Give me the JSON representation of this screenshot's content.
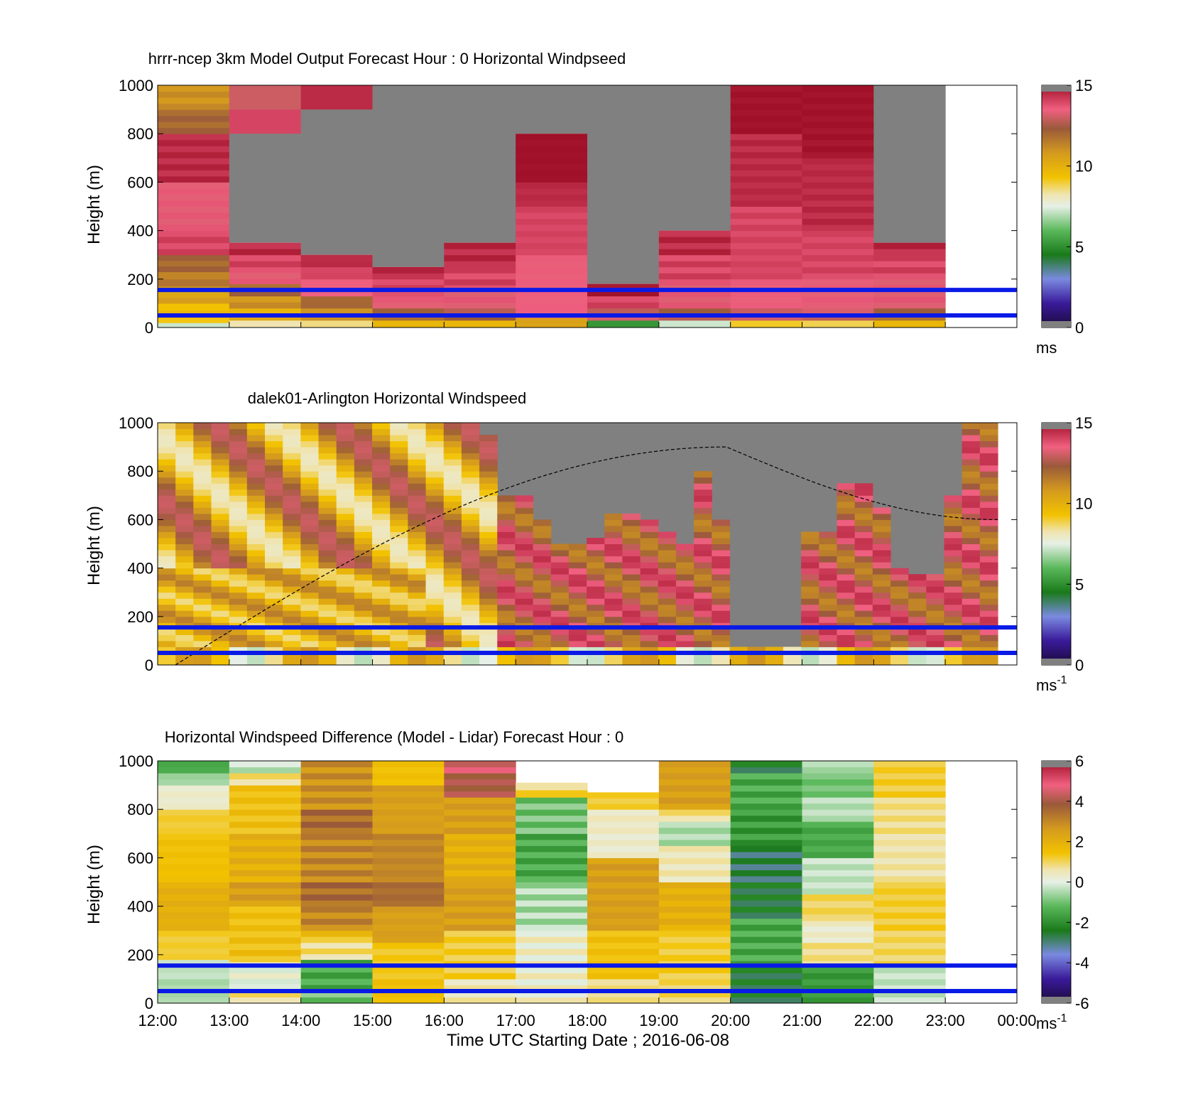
{
  "chart_data": [
    {
      "type": "heatmap",
      "title": "hrrr-ncep 3km Model Output   Forecast Hour : 0 Horizontal Windpseed",
      "ylabel": "Height (m)",
      "ylim": [
        0,
        1000
      ],
      "yticks": [
        "0",
        "200",
        "400",
        "600",
        "800",
        "1000"
      ],
      "colorbar": {
        "min": 0,
        "max": 15,
        "ticks": [
          "0",
          "5",
          "10",
          "15"
        ],
        "unit": "ms",
        "unit_exp": "",
        "palette": "speed"
      },
      "hlines": [
        50,
        155
      ],
      "columns": [
        {
          "top": 1000,
          "segments": [
            [
              0,
              20,
              7
            ],
            [
              20,
              40,
              9
            ],
            [
              40,
              100,
              9.5
            ],
            [
              100,
              170,
              10.5
            ],
            [
              170,
              230,
              11.5
            ],
            [
              230,
              300,
              12
            ],
            [
              300,
              400,
              14
            ],
            [
              400,
              600,
              13.5
            ],
            [
              600,
              800,
              14.5
            ],
            [
              800,
              900,
              12
            ],
            [
              900,
              1000,
              11
            ]
          ]
        },
        {
          "top": 350,
          "segments": [
            [
              0,
              30,
              8
            ],
            [
              30,
              80,
              10
            ],
            [
              80,
              130,
              11
            ],
            [
              130,
              180,
              12
            ],
            [
              180,
              250,
              13.5
            ],
            [
              250,
              300,
              14
            ],
            [
              300,
              350,
              14.5
            ]
          ],
          "above": [
            {
              "from": 900,
              "to": 1000,
              "v": 13
            },
            {
              "from": 800,
              "to": 900,
              "v": 14
            }
          ]
        },
        {
          "top": 300,
          "segments": [
            [
              0,
              30,
              8.5
            ],
            [
              30,
              80,
              11
            ],
            [
              80,
              130,
              12
            ],
            [
              130,
              200,
              13.5
            ],
            [
              200,
              250,
              14
            ],
            [
              250,
              300,
              14.5
            ]
          ],
          "above": [
            {
              "from": 900,
              "to": 1000,
              "v": 14.5
            }
          ]
        },
        {
          "top": 250,
          "segments": [
            [
              0,
              30,
              10
            ],
            [
              30,
              80,
              12
            ],
            [
              80,
              130,
              13.5
            ],
            [
              130,
              200,
              14
            ],
            [
              200,
              250,
              14.5
            ]
          ]
        },
        {
          "top": 350,
          "segments": [
            [
              0,
              30,
              10
            ],
            [
              30,
              80,
              12.5
            ],
            [
              80,
              150,
              13.5
            ],
            [
              150,
              250,
              14
            ],
            [
              250,
              350,
              14.5
            ]
          ]
        },
        {
          "top": 800,
          "segments": [
            [
              0,
              40,
              10.5
            ],
            [
              40,
              100,
              13.5
            ],
            [
              100,
              300,
              13.5
            ],
            [
              300,
              500,
              14
            ],
            [
              500,
              600,
              14.5
            ],
            [
              600,
              700,
              15
            ],
            [
              700,
              800,
              15
            ]
          ]
        },
        {
          "top": 180,
          "segments": [
            [
              0,
              30,
              5
            ],
            [
              30,
              80,
              13
            ],
            [
              80,
              130,
              14
            ],
            [
              130,
              180,
              15
            ]
          ]
        },
        {
          "top": 400,
          "segments": [
            [
              0,
              30,
              7
            ],
            [
              30,
              80,
              12.5
            ],
            [
              80,
              200,
              13.5
            ],
            [
              200,
              300,
              14
            ],
            [
              300,
              400,
              14.5
            ]
          ]
        },
        {
          "top": 1000,
          "segments": [
            [
              0,
              30,
              9
            ],
            [
              30,
              80,
              13
            ],
            [
              80,
              200,
              13.5
            ],
            [
              200,
              500,
              14
            ],
            [
              500,
              800,
              14.5
            ],
            [
              800,
              1000,
              15
            ]
          ]
        },
        {
          "top": 1000,
          "segments": [
            [
              0,
              30,
              9
            ],
            [
              30,
              80,
              13
            ],
            [
              80,
              200,
              13.5
            ],
            [
              200,
              400,
              14
            ],
            [
              400,
              700,
              14.5
            ],
            [
              700,
              1000,
              15
            ]
          ]
        },
        {
          "top": 350,
          "segments": [
            [
              0,
              30,
              10
            ],
            [
              30,
              80,
              12
            ],
            [
              80,
              200,
              13.5
            ],
            [
              200,
              300,
              14
            ],
            [
              300,
              350,
              14.5
            ]
          ]
        },
        {
          "top": 0,
          "segments": []
        }
      ]
    },
    {
      "type": "heatmap",
      "title": "dalek01-Arlington  Horizontal Windspeed",
      "ylabel": "Height (m)",
      "ylim": [
        0,
        1000
      ],
      "yticks": [
        "0",
        "200",
        "400",
        "600",
        "800",
        "1000"
      ],
      "colorbar": {
        "min": 0,
        "max": 15,
        "ticks": [
          "0",
          "5",
          "10",
          "15"
        ],
        "unit": "ms",
        "unit_exp": "-1",
        "palette": "speed"
      },
      "hlines": [
        50,
        155
      ],
      "sun_curve": {
        "start": 0,
        "peak_x": 0.67,
        "peak_h": 900,
        "end_h": 600
      },
      "profile": {
        "n_columns": 47,
        "tops": [
          1000,
          1000,
          1000,
          1000,
          1000,
          1000,
          1000,
          1000,
          1000,
          1000,
          1000,
          1000,
          1000,
          1000,
          1000,
          1000,
          1000,
          1000,
          1000,
          1000,
          1000,
          1000,
          1000,
          1000,
          1000,
          1000,
          1000,
          1000,
          1000,
          1000,
          1000,
          1000,
          1000,
          1000,
          1000,
          1000,
          1000,
          1000,
          1000,
          1000,
          1000,
          1000,
          1000,
          1000,
          1000,
          1000,
          1000
        ],
        "valid_top": [
          1000,
          1000,
          1000,
          1000,
          1000,
          1000,
          1000,
          1000,
          1000,
          1000,
          1000,
          1000,
          1000,
          1000,
          1000,
          1000,
          1000,
          1000,
          950,
          700,
          700,
          600,
          520,
          520,
          540,
          640,
          640,
          600,
          560,
          500,
          800,
          600,
          80,
          80,
          80,
          80,
          560,
          560,
          750,
          760,
          650,
          420,
          380,
          380,
          700,
          1000,
          1000
        ]
      }
    },
    {
      "type": "heatmap",
      "title": "Horizontal Windspeed Difference (Model - Lidar) Forecast Hour : 0",
      "ylabel": "Height (m)",
      "xlabel": "Time UTC  Starting Date ; 2016-06-08",
      "ylim": [
        0,
        1000
      ],
      "yticks": [
        "0",
        "200",
        "400",
        "600",
        "800",
        "1000"
      ],
      "xticks": [
        "12:00",
        "13:00",
        "14:00",
        "15:00",
        "16:00",
        "17:00",
        "18:00",
        "19:00",
        "20:00",
        "21:00",
        "22:00",
        "23:00",
        "00:00"
      ],
      "colorbar": {
        "min": -6,
        "max": 6,
        "ticks": [
          "-6",
          "-4",
          "-2",
          "0",
          "2",
          "4",
          "6"
        ],
        "unit": "ms",
        "unit_exp": "-1",
        "palette": "diff"
      },
      "hlines": [
        50,
        155
      ],
      "columns": [
        {
          "top": 1000,
          "segments": [
            [
              0,
              100,
              -0.5
            ],
            [
              100,
              180,
              -0.3
            ],
            [
              180,
              300,
              1.2
            ],
            [
              300,
              500,
              2
            ],
            [
              500,
              700,
              1.5
            ],
            [
              700,
              800,
              1.2
            ],
            [
              800,
              900,
              0.3
            ],
            [
              900,
              950,
              -0.6
            ],
            [
              950,
              1000,
              -1.5
            ]
          ]
        },
        {
          "top": 1000,
          "segments": [
            [
              0,
              50,
              0.8
            ],
            [
              50,
              80,
              0.2
            ],
            [
              80,
              170,
              0.1
            ],
            [
              170,
              400,
              1.5
            ],
            [
              400,
              500,
              2.5
            ],
            [
              500,
              700,
              2
            ],
            [
              700,
              900,
              1.5
            ],
            [
              900,
              950,
              0.8
            ],
            [
              950,
              1000,
              -0.3
            ]
          ]
        },
        {
          "top": 1000,
          "segments": [
            [
              0,
              50,
              -1
            ],
            [
              50,
              180,
              -1.5
            ],
            [
              180,
              250,
              0.8
            ],
            [
              250,
              300,
              1.5
            ],
            [
              300,
              400,
              3
            ],
            [
              400,
              500,
              3.5
            ],
            [
              500,
              700,
              3
            ],
            [
              700,
              800,
              3.5
            ],
            [
              800,
              1000,
              2.8
            ]
          ]
        },
        {
          "top": 1000,
          "segments": [
            [
              0,
              100,
              1.5
            ],
            [
              100,
              250,
              1.3
            ],
            [
              250,
              400,
              2.5
            ],
            [
              400,
              500,
              3.5
            ],
            [
              500,
              700,
              3
            ],
            [
              700,
              900,
              2.5
            ],
            [
              900,
              1000,
              1.5
            ]
          ]
        },
        {
          "top": 1000,
          "segments": [
            [
              0,
              100,
              0.5
            ],
            [
              100,
              300,
              1.2
            ],
            [
              300,
              500,
              2.5
            ],
            [
              500,
              700,
              2
            ],
            [
              700,
              850,
              2.5
            ],
            [
              850,
              950,
              4
            ],
            [
              950,
              1000,
              4.5
            ]
          ]
        },
        {
          "top": 910,
          "segments": [
            [
              0,
              300,
              0.3
            ],
            [
              300,
              500,
              -0.5
            ],
            [
              500,
              700,
              -1.5
            ],
            [
              700,
              850,
              -1
            ],
            [
              850,
              910,
              1
            ]
          ]
        },
        {
          "top": 870,
          "segments": [
            [
              0,
              100,
              0.8
            ],
            [
              100,
              300,
              1.5
            ],
            [
              300,
              600,
              2.5
            ],
            [
              600,
              700,
              0.3
            ],
            [
              700,
              800,
              0.4
            ],
            [
              800,
              870,
              1.2
            ]
          ]
        },
        {
          "top": 1000,
          "segments": [
            [
              0,
              100,
              1
            ],
            [
              100,
              300,
              1.2
            ],
            [
              300,
              500,
              2
            ],
            [
              500,
              650,
              0.5
            ],
            [
              650,
              750,
              -0.5
            ],
            [
              750,
              800,
              0.8
            ],
            [
              800,
              1000,
              2.5
            ]
          ]
        },
        {
          "top": 1000,
          "segments": [
            [
              0,
              150,
              -2.5
            ],
            [
              150,
              350,
              -1.5
            ],
            [
              350,
              500,
              -2.5
            ],
            [
              500,
              650,
              -2.8
            ],
            [
              650,
              800,
              -1.8
            ],
            [
              800,
              950,
              -1.5
            ],
            [
              950,
              1000,
              -2.5
            ]
          ]
        },
        {
          "top": 1000,
          "segments": [
            [
              0,
              150,
              -1.8
            ],
            [
              150,
              250,
              0.8
            ],
            [
              250,
              340,
              0.3
            ],
            [
              340,
              450,
              1
            ],
            [
              450,
              600,
              -0.3
            ],
            [
              600,
              750,
              -1.5
            ],
            [
              750,
              850,
              -0.4
            ],
            [
              850,
              950,
              -1
            ],
            [
              950,
              1000,
              -0.5
            ]
          ]
        },
        {
          "top": 1000,
          "segments": [
            [
              0,
              150,
              -0.3
            ],
            [
              150,
              300,
              1
            ],
            [
              300,
              500,
              1.2
            ],
            [
              500,
              700,
              0.6
            ],
            [
              700,
              850,
              0.8
            ],
            [
              850,
              1000,
              1.2
            ]
          ]
        },
        {
          "top": 0,
          "segments": []
        }
      ]
    }
  ]
}
